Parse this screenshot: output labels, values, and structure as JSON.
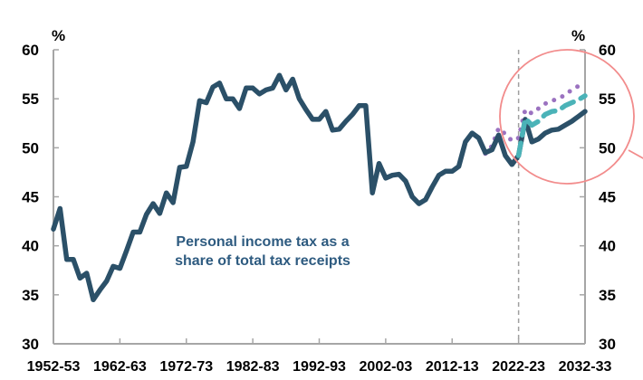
{
  "chart_data": {
    "type": "line",
    "title": "",
    "ylabel_left": "%",
    "ylabel_right": "%",
    "ylim": [
      30,
      60
    ],
    "yticks": [
      30,
      35,
      40,
      45,
      50,
      55,
      60
    ],
    "xlim": [
      1952,
      2032
    ],
    "xtick_labels": [
      "1952-53",
      "1962-63",
      "1972-73",
      "1982-83",
      "1992-93",
      "2002-03",
      "2012-13",
      "2022-23",
      "2032-33"
    ],
    "xtick_years": [
      1952,
      1962,
      1972,
      1982,
      1992,
      2002,
      2012,
      2022,
      2032
    ],
    "annotation": [
      "Personal income tax as a",
      "share of total tax receipts"
    ],
    "projection_start_year": 2022,
    "grid": false,
    "highlight_circle": true,
    "colors": {
      "main": "#2B5068",
      "dashed": "#4BB3B8",
      "dotted": "#9B72C0",
      "circle": "#F28C8C",
      "divider": "#A0A0A0",
      "axis": "#A6A6A6"
    },
    "series": [
      {
        "style": "solid",
        "x_start": 1952,
        "values": [
          41.7,
          43.8,
          38.6,
          38.6,
          36.7,
          37.2,
          34.5,
          35.5,
          36.4,
          37.9,
          37.7,
          39.5,
          41.4,
          41.4,
          43.2,
          44.3,
          43.3,
          45.4,
          44.4,
          48.0,
          48.1,
          50.6,
          54.8,
          54.6,
          56.2,
          56.6,
          55.0,
          55.0,
          54.0,
          56.1,
          56.1,
          55.5,
          55.9,
          56.1,
          57.4,
          55.9,
          57.0,
          55.0,
          53.9,
          52.9,
          52.9,
          53.7,
          51.8,
          51.9,
          52.7,
          53.4,
          54.3,
          54.3,
          45.4,
          48.4,
          46.9,
          47.2,
          47.3,
          46.6,
          45.0,
          44.3,
          44.7,
          46.0,
          47.2,
          47.6,
          47.6,
          48.1,
          50.6,
          51.5,
          51.0,
          49.5,
          49.8,
          51.3,
          49.2,
          48.3,
          49.2,
          52.9,
          50.6,
          50.9,
          51.5,
          51.8,
          51.9,
          52.3,
          52.7,
          53.2,
          53.7
        ]
      },
      {
        "style": "dashed",
        "x_start": 2022,
        "values": [
          49.2,
          53.0,
          52.3,
          52.7,
          53.4,
          53.7,
          53.8,
          54.3,
          54.6,
          54.9,
          55.3
        ]
      },
      {
        "style": "dotted",
        "x_start": 2017,
        "values": [
          49.4,
          50.2,
          52.0,
          51.4,
          50.7,
          51.0,
          53.9,
          53.5,
          54.0,
          54.5,
          54.8,
          55.0,
          55.4,
          55.9,
          56.3,
          56.6
        ]
      }
    ]
  }
}
